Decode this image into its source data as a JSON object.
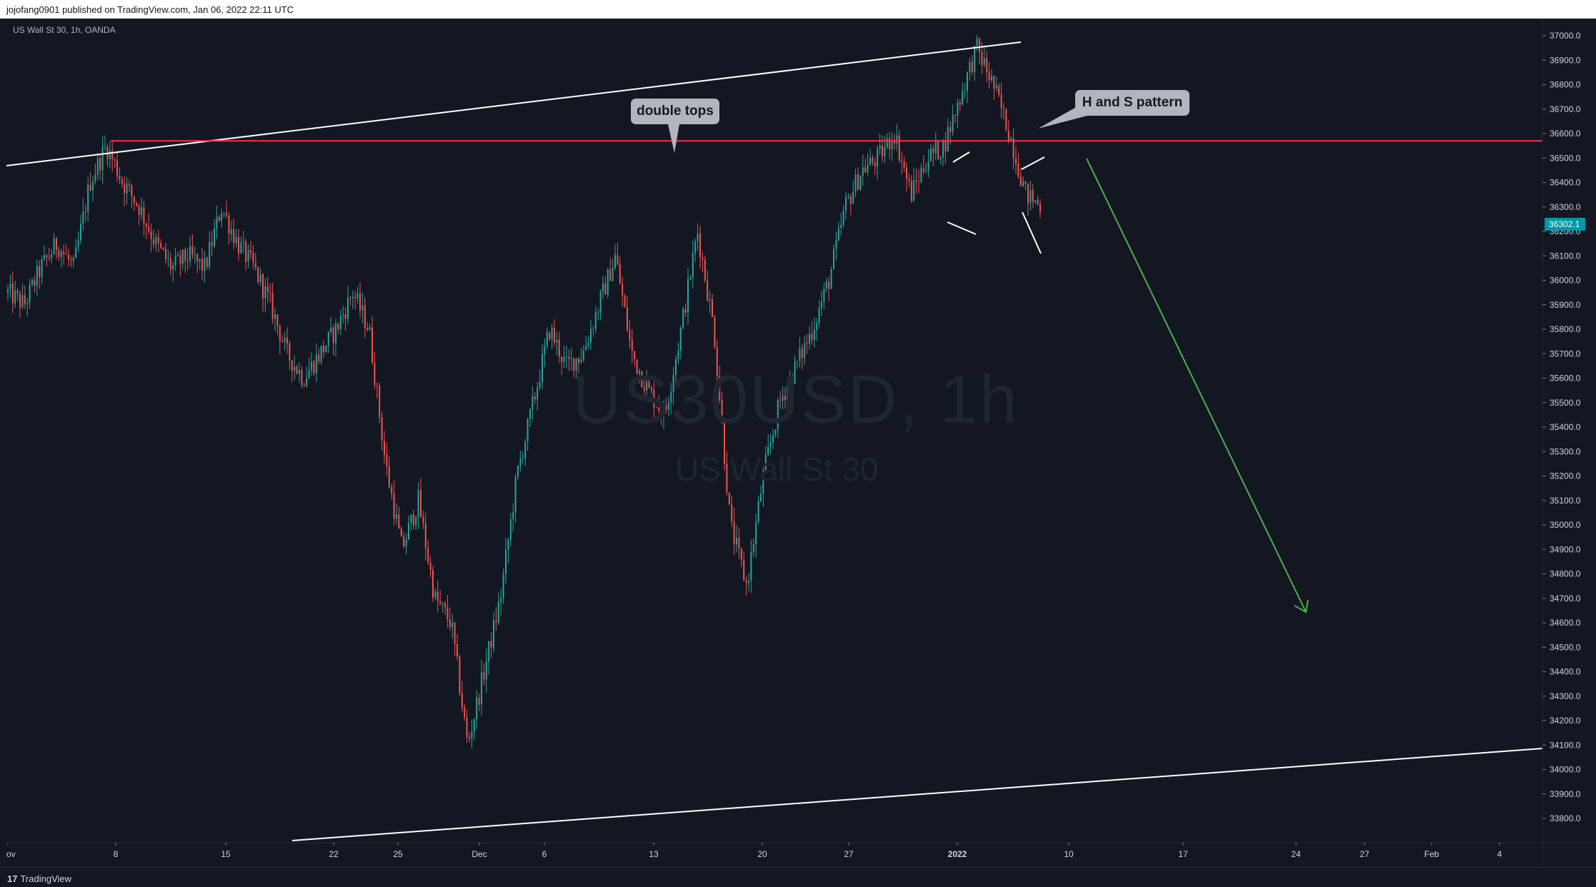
{
  "header": {
    "attribution": "jojofang0901 published on TradingView.com, Jan 06, 2022 22:11 UTC"
  },
  "symbol_legend": "US Wall St 30, 1h, OANDA",
  "watermark": {
    "symbol": "US30USD, 1h",
    "description": "US Wall St 30"
  },
  "footer": {
    "logo_mark": "17",
    "brand": "TradingView"
  },
  "annotations": {
    "double_tops": "double tops",
    "hs_pattern": "H and S pattern"
  },
  "colors": {
    "background": "#131722",
    "up_candle": "#26a69a",
    "down_candle": "#ef5350",
    "resistance_line": "#f23645",
    "target_arrow": "#4caf50",
    "trendline": "#ffffff",
    "last_price_tag": "#0097a7",
    "callout_bg": "#b2b5be"
  },
  "chart_data": {
    "type": "candlestick",
    "symbol": "US Wall St 30",
    "interval": "1h",
    "broker": "OANDA",
    "y_range": [
      33750,
      37100
    ],
    "y_ticks": [
      37100,
      37000,
      36900,
      36800,
      36700,
      36600,
      36500,
      36400,
      36300,
      36200,
      36100,
      36000,
      35900,
      35800,
      35700,
      35600,
      35500,
      35400,
      35300,
      35200,
      35100,
      35000,
      34900,
      34800,
      34700,
      34600,
      34500,
      34400,
      34300,
      34200,
      34100,
      34000,
      33900,
      33800
    ],
    "x_ticks": [
      "ov",
      "8",
      "15",
      "22",
      "25",
      "Dec",
      "6",
      "13",
      "20",
      "27",
      "2022",
      "10",
      "17",
      "24",
      "27",
      "Feb",
      "4"
    ],
    "last_price": "36302.1",
    "price_path_points": [
      [
        "Nov 3",
        35950
      ],
      [
        "Nov 4",
        35900
      ],
      [
        "Nov 5",
        36050
      ],
      [
        "Nov 6",
        36150
      ],
      [
        "Nov 7",
        36050
      ],
      [
        "Nov 8",
        36400
      ],
      [
        "Nov 9",
        36550
      ],
      [
        "Nov 10",
        36400
      ],
      [
        "Nov 11",
        36300
      ],
      [
        "Nov 12",
        36150
      ],
      [
        "Nov 15",
        36050
      ],
      [
        "Nov 16",
        36100
      ],
      [
        "Nov 17",
        36050
      ],
      [
        "Nov 18",
        36300
      ],
      [
        "Nov 19",
        36150
      ],
      [
        "Nov 20",
        36050
      ],
      [
        "Nov 22",
        35900
      ],
      [
        "Nov 23",
        35700
      ],
      [
        "Nov 24",
        35600
      ],
      [
        "Nov 25",
        35700
      ],
      [
        "Nov 26",
        35800
      ],
      [
        "Nov 27",
        35950
      ],
      [
        "Nov 28",
        35800
      ],
      [
        "Nov 29",
        35250
      ],
      [
        "Nov 30",
        34900
      ],
      [
        "Dec 1",
        35100
      ],
      [
        "Dec 2",
        34700
      ],
      [
        "Dec 3",
        34600
      ],
      [
        "Dec 4",
        34100
      ],
      [
        "Dec 5",
        34400
      ],
      [
        "Dec 6",
        34700
      ],
      [
        "Dec 7",
        35200
      ],
      [
        "Dec 8",
        35500
      ],
      [
        "Dec 9",
        35800
      ],
      [
        "Dec 10",
        35650
      ],
      [
        "Dec 11",
        35700
      ],
      [
        "Dec 12",
        35900
      ],
      [
        "Dec 13",
        36100
      ],
      [
        "Dec 14",
        35700
      ],
      [
        "Dec 15",
        35550
      ],
      [
        "Dec 16",
        35450
      ],
      [
        "Dec 17",
        35800
      ],
      [
        "Dec 18",
        36200
      ],
      [
        "Dec 19",
        35800
      ],
      [
        "Dec 20",
        35000
      ],
      [
        "Dec 21",
        34750
      ],
      [
        "Dec 22",
        35200
      ],
      [
        "Dec 23",
        35500
      ],
      [
        "Dec 24",
        35650
      ],
      [
        "Dec 25",
        35800
      ],
      [
        "Dec 26",
        36000
      ],
      [
        "Dec 27",
        36300
      ],
      [
        "Dec 28",
        36450
      ],
      [
        "Dec 29",
        36500
      ],
      [
        "Dec 30",
        36600
      ],
      [
        "Dec 31",
        36350
      ],
      [
        "Jan 1",
        36500
      ],
      [
        "Jan 2",
        36550
      ],
      [
        "Jan 3",
        36750
      ],
      [
        "Jan 4",
        36950
      ],
      [
        "Jan 5",
        36800
      ],
      [
        "Jan 6",
        36600
      ],
      [
        "Jan 7",
        36350
      ],
      [
        "Jan 8",
        36300
      ]
    ],
    "drawings": {
      "resistance_level": 36570,
      "annotations": [
        "double tops",
        "H and S pattern"
      ]
    }
  }
}
